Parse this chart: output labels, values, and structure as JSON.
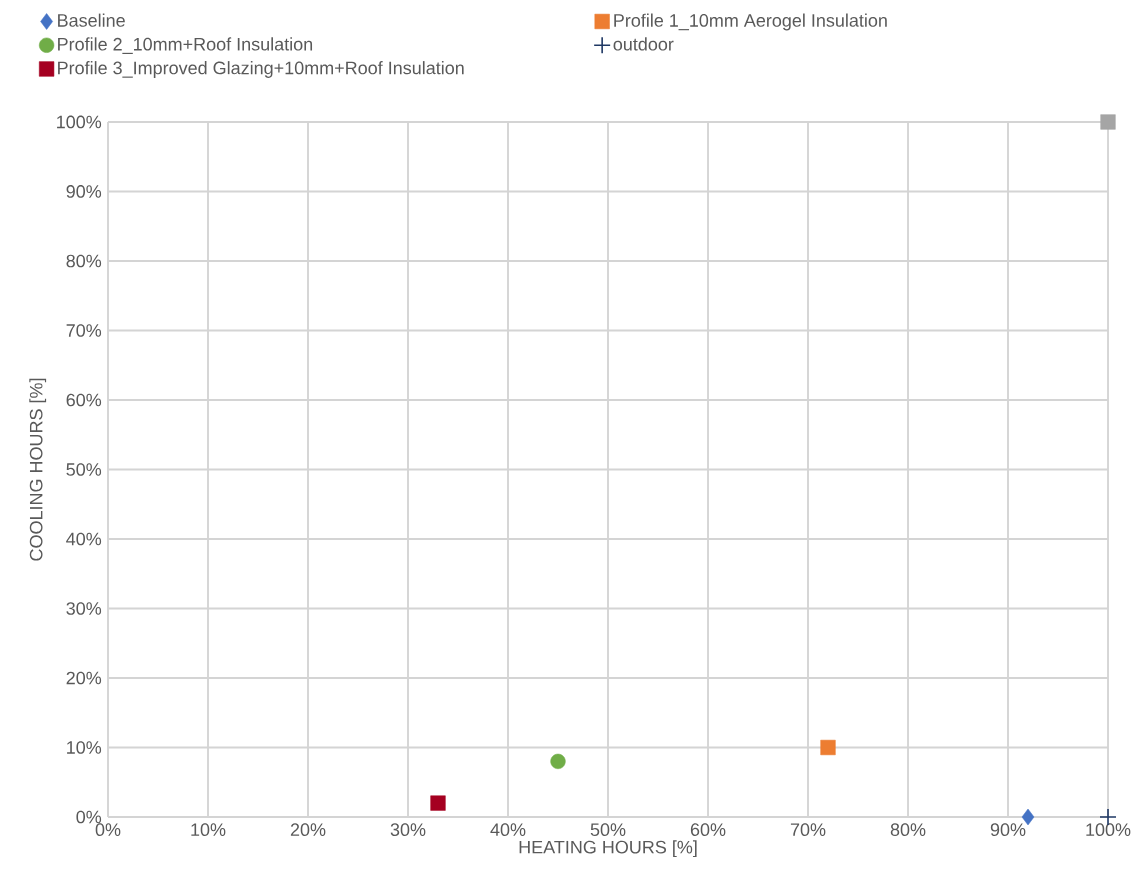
{
  "chart_data": {
    "type": "scatter",
    "xlabel": "HEATING HOURS [%]",
    "ylabel": "COOLING HOURS [%]",
    "xlim": [
      0,
      100
    ],
    "ylim": [
      0,
      100
    ],
    "xticks": [
      {
        "value": 0,
        "label": "0%"
      },
      {
        "value": 10,
        "label": "10%"
      },
      {
        "value": 20,
        "label": "20%"
      },
      {
        "value": 30,
        "label": "30%"
      },
      {
        "value": 40,
        "label": "40%"
      },
      {
        "value": 50,
        "label": "50%"
      },
      {
        "value": 60,
        "label": "60%"
      },
      {
        "value": 70,
        "label": "70%"
      },
      {
        "value": 80,
        "label": "80%"
      },
      {
        "value": 90,
        "label": "90%"
      },
      {
        "value": 100,
        "label": "100%"
      }
    ],
    "yticks": [
      {
        "value": 0,
        "label": "0%"
      },
      {
        "value": 10,
        "label": "10%"
      },
      {
        "value": 20,
        "label": "20%"
      },
      {
        "value": 30,
        "label": "30%"
      },
      {
        "value": 40,
        "label": "40%"
      },
      {
        "value": 50,
        "label": "50%"
      },
      {
        "value": 60,
        "label": "60%"
      },
      {
        "value": 70,
        "label": "70%"
      },
      {
        "value": 80,
        "label": "80%"
      },
      {
        "value": 90,
        "label": "90%"
      },
      {
        "value": 100,
        "label": "100%"
      }
    ],
    "grid": true,
    "legend": "top",
    "series": [
      {
        "name": "Baseline",
        "color": "#4472c4",
        "marker": "diamond",
        "x": [
          92
        ],
        "values": [
          0
        ]
      },
      {
        "name": "Profile 1_10mm Aerogel Insulation",
        "color": "#ed7d31",
        "marker": "square",
        "x": [
          72
        ],
        "values": [
          10
        ]
      },
      {
        "name": "Profile 2_10mm+Roof Insulation",
        "color": "#70ad47",
        "marker": "circle",
        "x": [
          45
        ],
        "values": [
          8
        ]
      },
      {
        "name": "outdoor",
        "color": "#1f3864",
        "marker": "cross",
        "x": [
          100
        ],
        "values": [
          0
        ]
      },
      {
        "name": "Profile 3_Improved Glazing+10mm+Roof Insulation",
        "color": "#a50021",
        "marker": "square",
        "x": [
          33
        ],
        "values": [
          2
        ]
      },
      {
        "color": "#a5a5a5",
        "marker": "square",
        "x": [
          100
        ],
        "values": [
          100
        ]
      }
    ]
  }
}
